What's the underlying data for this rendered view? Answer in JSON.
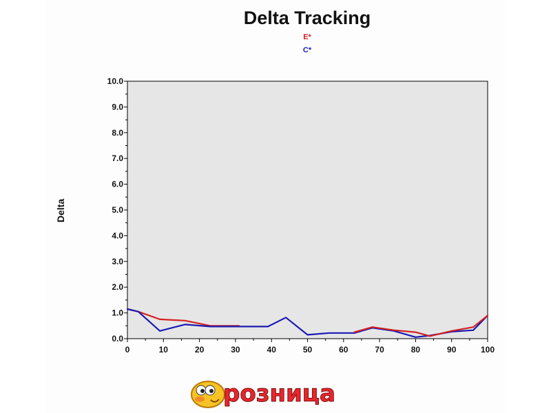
{
  "chart_data": {
    "type": "line",
    "title": "Delta Tracking",
    "xlabel": "",
    "ylabel": "Delta",
    "xlim": [
      0,
      100
    ],
    "ylim": [
      0,
      10
    ],
    "x_ticks": [
      "0",
      "10",
      "20",
      "30",
      "40",
      "50",
      "60",
      "70",
      "80",
      "90",
      "100"
    ],
    "y_ticks": [
      "0.0",
      "1.0",
      "2.0",
      "3.0",
      "4.0",
      "5.0",
      "6.0",
      "7.0",
      "8.0",
      "9.0",
      "10.0"
    ],
    "grid": false,
    "plot_background": "#e6e6e6",
    "legend_position": "top-center",
    "series": [
      {
        "name": "E*",
        "color": "#d42020",
        "x": [
          0,
          3,
          9,
          16,
          23,
          31
        ],
        "y": [
          1.15,
          1.05,
          0.75,
          0.7,
          0.5,
          0.5
        ]
      },
      {
        "name": "C*",
        "color": "#1a1ab4",
        "x": [
          0,
          3,
          9,
          16,
          23,
          31,
          39,
          44,
          50,
          56,
          63,
          68,
          74,
          80,
          84,
          90,
          96,
          100
        ],
        "y": [
          1.15,
          1.05,
          0.3,
          0.55,
          0.47,
          0.47,
          0.47,
          0.82,
          0.15,
          0.22,
          0.22,
          0.42,
          0.3,
          0.06,
          0.12,
          0.27,
          0.33,
          0.9
        ]
      },
      {
        "name": "E*",
        "color": "#d42020",
        "x": [
          63,
          68,
          74,
          80,
          84,
          90,
          96,
          100
        ],
        "y": [
          0.25,
          0.45,
          0.33,
          0.25,
          0.1,
          0.3,
          0.45,
          0.9
        ]
      }
    ]
  },
  "logo": {
    "text": "розница"
  }
}
